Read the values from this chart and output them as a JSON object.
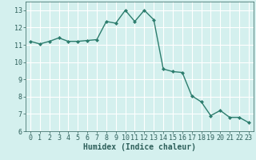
{
  "x": [
    0,
    1,
    2,
    3,
    4,
    5,
    6,
    7,
    8,
    9,
    10,
    11,
    12,
    13,
    14,
    15,
    16,
    17,
    18,
    19,
    20,
    21,
    22,
    23
  ],
  "y": [
    11.2,
    11.05,
    11.2,
    11.4,
    11.2,
    11.2,
    11.25,
    11.3,
    12.35,
    12.25,
    13.0,
    12.35,
    13.0,
    12.45,
    9.6,
    9.45,
    9.4,
    8.05,
    7.7,
    6.9,
    7.2,
    6.8,
    6.8,
    6.5
  ],
  "line_color": "#2d7d6e",
  "marker": "D",
  "markersize": 2.0,
  "linewidth": 1.0,
  "xlabel": "Humidex (Indice chaleur)",
  "xlabel_fontsize": 7,
  "ylim": [
    6,
    13.5
  ],
  "xlim": [
    -0.5,
    23.5
  ],
  "yticks": [
    6,
    7,
    8,
    9,
    10,
    11,
    12,
    13
  ],
  "xticks": [
    0,
    1,
    2,
    3,
    4,
    5,
    6,
    7,
    8,
    9,
    10,
    11,
    12,
    13,
    14,
    15,
    16,
    17,
    18,
    19,
    20,
    21,
    22,
    23
  ],
  "bg_color": "#d4f0ee",
  "grid_color": "#ffffff",
  "tick_fontsize": 6,
  "tick_color": "#2d5f5a",
  "spine_color": "#2d5f5a"
}
